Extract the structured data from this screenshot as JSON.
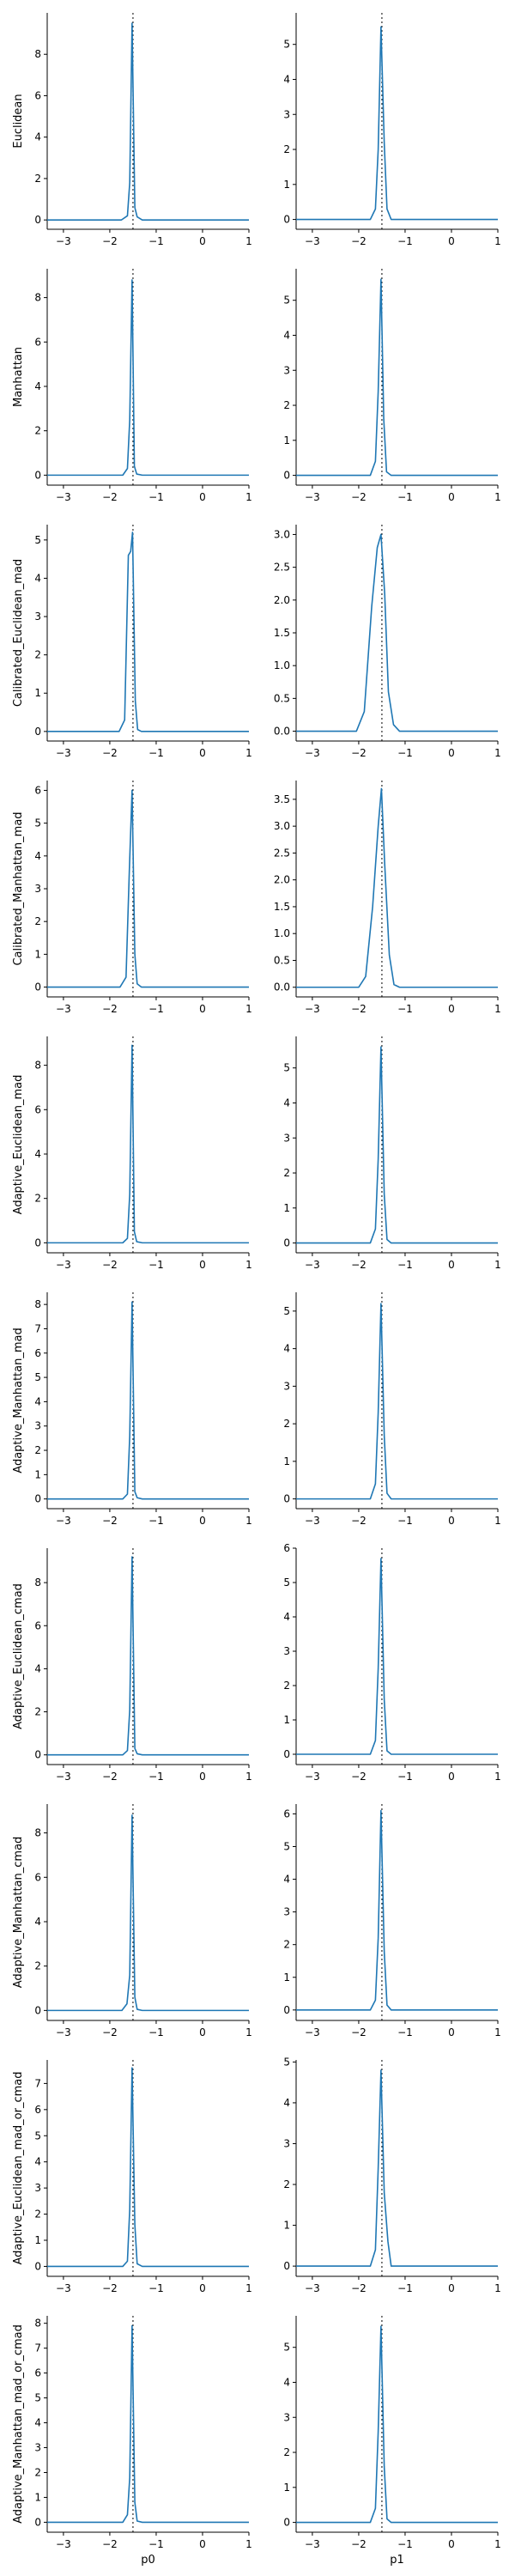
{
  "chart_data": {
    "type": "line",
    "columns": [
      "p0",
      "p1"
    ],
    "xticks": [
      -3,
      -2,
      -1,
      0,
      1
    ],
    "xlim": [
      -3.35,
      1.0
    ],
    "reference_x": -1.5,
    "colors": {
      "series": "#1f77b4",
      "reference": "#000000"
    },
    "grid": false,
    "rows": [
      {
        "label": "Euclidean",
        "panels": [
          {
            "yticks": [
              0,
              2,
              4,
              6,
              8
            ],
            "ylim": [
              -0.45,
              10.0
            ],
            "peak": 9.5,
            "x": [
              -3.35,
              -1.75,
              -1.62,
              -1.57,
              -1.52,
              -1.46,
              -1.41,
              -1.3,
              1.0
            ],
            "y": [
              0,
              0,
              0.2,
              1.8,
              9.5,
              0.6,
              0.15,
              0,
              0
            ]
          },
          {
            "yticks": [
              0,
              1,
              2,
              3,
              4,
              5
            ],
            "ylim": [
              -0.28,
              5.9
            ],
            "peak": 5.5,
            "x": [
              -3.35,
              -1.75,
              -1.64,
              -1.58,
              -1.52,
              -1.45,
              -1.39,
              -1.3,
              1.0
            ],
            "y": [
              0,
              0,
              0.3,
              2.0,
              5.5,
              2.2,
              0.3,
              0,
              0
            ]
          }
        ]
      },
      {
        "label": "Manhattan",
        "panels": [
          {
            "yticks": [
              0,
              2,
              4,
              6,
              8
            ],
            "ylim": [
              -0.45,
              9.3
            ],
            "peak": 8.8,
            "x": [
              -3.35,
              -1.72,
              -1.62,
              -1.57,
              -1.52,
              -1.47,
              -1.42,
              -1.3,
              1.0
            ],
            "y": [
              0,
              0,
              0.3,
              2.5,
              8.8,
              0.4,
              0.05,
              0,
              0
            ]
          },
          {
            "yticks": [
              0,
              1,
              2,
              3,
              4,
              5
            ],
            "ylim": [
              -0.28,
              5.9
            ],
            "peak": 5.6,
            "x": [
              -3.35,
              -1.75,
              -1.64,
              -1.58,
              -1.52,
              -1.46,
              -1.4,
              -1.3,
              1.0
            ],
            "y": [
              0,
              0,
              0.4,
              2.4,
              5.6,
              1.6,
              0.1,
              0,
              0
            ]
          }
        ]
      },
      {
        "label": "Calibrated_Euclidean_mad",
        "panels": [
          {
            "yticks": [
              0,
              1,
              2,
              3,
              4,
              5
            ],
            "ylim": [
              -0.25,
              5.4
            ],
            "peak": 5.2,
            "x": [
              -3.35,
              -1.8,
              -1.68,
              -1.6,
              -1.55,
              -1.51,
              -1.45,
              -1.4,
              -1.32,
              1.0
            ],
            "y": [
              0,
              0,
              0.3,
              4.6,
              4.7,
              5.2,
              0.8,
              0.05,
              0,
              0
            ]
          },
          {
            "yticks": [
              0.0,
              0.5,
              1.0,
              1.5,
              2.0,
              2.5,
              3.0
            ],
            "ylim": [
              -0.15,
              3.15
            ],
            "peak": 3.0,
            "x": [
              -3.35,
              -2.05,
              -1.88,
              -1.72,
              -1.6,
              -1.52,
              -1.44,
              -1.36,
              -1.25,
              -1.12,
              1.0
            ],
            "y": [
              0,
              0,
              0.3,
              1.9,
              2.8,
              3.0,
              2.1,
              0.6,
              0.1,
              0,
              0
            ]
          }
        ]
      },
      {
        "label": "Calibrated_Manhattan_mad",
        "panels": [
          {
            "yticks": [
              0,
              1,
              2,
              3,
              4,
              5,
              6
            ],
            "ylim": [
              -0.3,
              6.3
            ],
            "peak": 6.0,
            "x": [
              -3.35,
              -1.78,
              -1.65,
              -1.58,
              -1.52,
              -1.46,
              -1.41,
              -1.32,
              1.0
            ],
            "y": [
              0,
              0,
              0.3,
              3.5,
              6.0,
              1.0,
              0.1,
              0,
              0
            ]
          },
          {
            "yticks": [
              0.0,
              0.5,
              1.0,
              1.5,
              2.0,
              2.5,
              3.0,
              3.5
            ],
            "ylim": [
              -0.18,
              3.85
            ],
            "peak": 3.7,
            "x": [
              -3.35,
              -2.0,
              -1.85,
              -1.7,
              -1.58,
              -1.51,
              -1.44,
              -1.34,
              -1.24,
              -1.12,
              1.0
            ],
            "y": [
              0,
              0,
              0.2,
              1.5,
              3.0,
              3.7,
              2.3,
              0.6,
              0.05,
              0,
              0
            ]
          }
        ]
      },
      {
        "label": "Adaptive_Euclidean_mad",
        "panels": [
          {
            "yticks": [
              0,
              2,
              4,
              6,
              8
            ],
            "ylim": [
              -0.45,
              9.3
            ],
            "peak": 8.9,
            "x": [
              -3.35,
              -1.72,
              -1.62,
              -1.57,
              -1.52,
              -1.47,
              -1.42,
              -1.3,
              1.0
            ],
            "y": [
              0,
              0,
              0.2,
              2.2,
              8.9,
              0.5,
              0.05,
              0,
              0
            ]
          },
          {
            "yticks": [
              0,
              1,
              2,
              3,
              4,
              5
            ],
            "ylim": [
              -0.28,
              5.9
            ],
            "peak": 5.6,
            "x": [
              -3.35,
              -1.75,
              -1.64,
              -1.58,
              -1.52,
              -1.45,
              -1.39,
              -1.3,
              1.0
            ],
            "y": [
              0,
              0,
              0.4,
              2.4,
              5.6,
              1.4,
              0.1,
              0,
              0
            ]
          }
        ]
      },
      {
        "label": "Adaptive_Manhattan_mad",
        "panels": [
          {
            "yticks": [
              0,
              1,
              2,
              3,
              4,
              5,
              6,
              7,
              8
            ],
            "ylim": [
              -0.4,
              8.5
            ],
            "peak": 8.1,
            "x": [
              -3.35,
              -1.72,
              -1.62,
              -1.57,
              -1.52,
              -1.46,
              -1.41,
              -1.3,
              1.0
            ],
            "y": [
              0,
              0,
              0.2,
              2.6,
              8.1,
              0.3,
              0.05,
              0,
              0
            ]
          },
          {
            "yticks": [
              0,
              1,
              2,
              3,
              4,
              5
            ],
            "ylim": [
              -0.26,
              5.5
            ],
            "peak": 5.2,
            "x": [
              -3.35,
              -1.75,
              -1.64,
              -1.58,
              -1.52,
              -1.45,
              -1.39,
              -1.3,
              1.0
            ],
            "y": [
              0,
              0,
              0.4,
              2.3,
              5.2,
              1.7,
              0.15,
              0,
              0
            ]
          }
        ]
      },
      {
        "label": "Adaptive_Euclidean_cmad",
        "panels": [
          {
            "yticks": [
              0,
              2,
              4,
              6,
              8
            ],
            "ylim": [
              -0.45,
              9.6
            ],
            "peak": 9.2,
            "x": [
              -3.35,
              -1.72,
              -1.62,
              -1.57,
              -1.52,
              -1.46,
              -1.41,
              -1.3,
              1.0
            ],
            "y": [
              0,
              0,
              0.2,
              2.1,
              9.2,
              0.3,
              0.05,
              0,
              0
            ]
          },
          {
            "yticks": [
              0,
              1,
              2,
              3,
              4,
              5,
              6
            ],
            "ylim": [
              -0.3,
              6.0
            ],
            "peak": 5.7,
            "x": [
              -3.35,
              -1.75,
              -1.64,
              -1.58,
              -1.52,
              -1.45,
              -1.39,
              -1.3,
              1.0
            ],
            "y": [
              0,
              0,
              0.4,
              2.5,
              5.7,
              1.6,
              0.1,
              0,
              0
            ]
          }
        ]
      },
      {
        "label": "Adaptive_Manhattan_cmad",
        "panels": [
          {
            "yticks": [
              0,
              2,
              4,
              6,
              8
            ],
            "ylim": [
              -0.45,
              9.3
            ],
            "peak": 8.8,
            "x": [
              -3.35,
              -1.74,
              -1.63,
              -1.57,
              -1.52,
              -1.46,
              -1.41,
              -1.3,
              1.0
            ],
            "y": [
              0,
              0,
              0.3,
              1.6,
              8.8,
              0.6,
              0.05,
              0,
              0
            ]
          },
          {
            "yticks": [
              0,
              1,
              2,
              3,
              4,
              5,
              6
            ],
            "ylim": [
              -0.32,
              6.3
            ],
            "peak": 6.1,
            "x": [
              -3.35,
              -1.75,
              -1.64,
              -1.58,
              -1.52,
              -1.45,
              -1.39,
              -1.3,
              1.0
            ],
            "y": [
              0,
              0,
              0.3,
              2.2,
              6.1,
              1.8,
              0.15,
              0,
              0
            ]
          }
        ]
      },
      {
        "label": "Adaptive_Euclidean_mad_or_cmad",
        "panels": [
          {
            "yticks": [
              0,
              1,
              2,
              3,
              4,
              5,
              6,
              7
            ],
            "ylim": [
              -0.38,
              7.9
            ],
            "peak": 7.6,
            "x": [
              -3.35,
              -1.72,
              -1.62,
              -1.57,
              -1.52,
              -1.46,
              -1.41,
              -1.3,
              1.0
            ],
            "y": [
              0,
              0,
              0.2,
              2.2,
              7.6,
              1.6,
              0.1,
              0,
              0
            ]
          },
          {
            "yticks": [
              0,
              1,
              2,
              3,
              4,
              5
            ],
            "ylim": [
              -0.25,
              5.05
            ],
            "peak": 4.8,
            "x": [
              -3.35,
              -1.75,
              -1.64,
              -1.58,
              -1.52,
              -1.45,
              -1.37,
              -1.3,
              1.0
            ],
            "y": [
              0,
              0,
              0.4,
              2.4,
              4.8,
              1.8,
              0.6,
              0,
              0
            ]
          }
        ]
      },
      {
        "label": "Adaptive_Manhattan_mad_or_cmad",
        "panels": [
          {
            "yticks": [
              0,
              1,
              2,
              3,
              4,
              5,
              6,
              7,
              8
            ],
            "ylim": [
              -0.4,
              8.3
            ],
            "peak": 7.9,
            "x": [
              -3.35,
              -1.72,
              -1.62,
              -1.57,
              -1.52,
              -1.46,
              -1.41,
              -1.3,
              1.0
            ],
            "y": [
              0,
              0,
              0.3,
              1.8,
              7.9,
              0.8,
              0.05,
              0,
              0
            ]
          },
          {
            "yticks": [
              0,
              1,
              2,
              3,
              4,
              5
            ],
            "ylim": [
              -0.28,
              5.9
            ],
            "peak": 5.6,
            "x": [
              -3.35,
              -1.75,
              -1.64,
              -1.58,
              -1.52,
              -1.45,
              -1.39,
              -1.3,
              1.0
            ],
            "y": [
              0,
              0,
              0.4,
              2.6,
              5.6,
              1.6,
              0.1,
              0,
              0
            ]
          }
        ]
      }
    ]
  }
}
